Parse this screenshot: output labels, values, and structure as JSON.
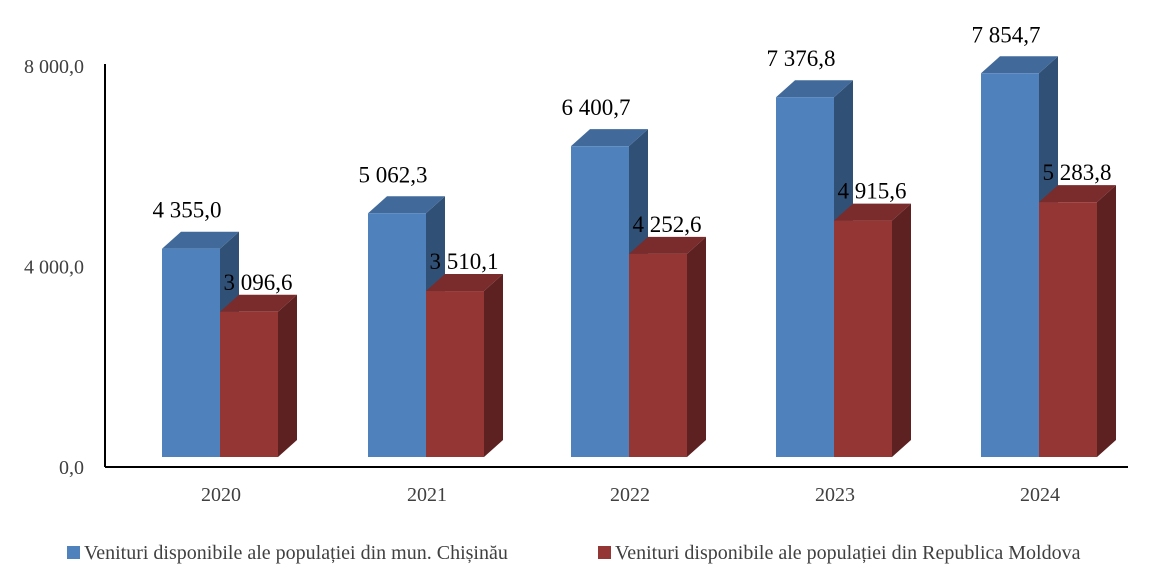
{
  "chart_data": {
    "type": "bar",
    "style": "3d-clustered-column",
    "categories": [
      "2020",
      "2021",
      "2022",
      "2023",
      "2024"
    ],
    "series": [
      {
        "name": "Venituri disponibile ale populației din mun. Chișinău",
        "color": "#4F81BD",
        "values": [
          4355.0,
          5062.3,
          6400.7,
          7376.8,
          7854.7
        ],
        "labels": [
          "4 355,0",
          "5 062,3",
          "6 400,7",
          "7 376,8",
          "7 854,7"
        ]
      },
      {
        "name": "Venituri disponibile ale populației din Republica Moldova",
        "color": "#943634",
        "values": [
          3096.6,
          3510.1,
          4252.6,
          4915.6,
          5283.8
        ],
        "labels": [
          "3 096,6",
          "3 510,1",
          "4 252,6",
          "4 915,6",
          "5 283,8"
        ]
      }
    ],
    "y_ticks": [
      0,
      4000,
      8000
    ],
    "y_tick_labels": [
      "0,0",
      "4 000,0",
      "8 000,0"
    ],
    "ylim": [
      0,
      8000
    ],
    "grid": false,
    "legend_position": "bottom"
  }
}
